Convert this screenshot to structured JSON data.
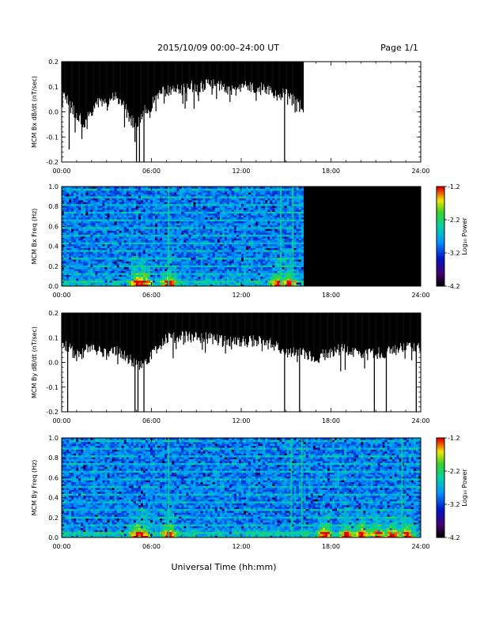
{
  "header": {
    "title": "2015/10/09  00:00–24:00 UT",
    "page": "Page 1/1"
  },
  "footer": {
    "xlabel": "Universal Time (hh:mm)"
  },
  "chart_data": [
    {
      "type": "line",
      "ylabel": "MCM Bx dB/dt (nT/sec)",
      "x_ticks": [
        "00:00",
        "06:00",
        "12:00",
        "18:00",
        "24:00"
      ],
      "y_ticks": [
        "0.2",
        "0.1",
        "0.0",
        "-0.1",
        "-0.2"
      ],
      "xlim": [
        0,
        24
      ],
      "ylim": [
        -0.2,
        0.2
      ],
      "data_end_hour": 16.2,
      "envelope_hours": [
        0,
        0.5,
        1,
        1.5,
        2,
        2.5,
        3,
        3.5,
        4,
        4.5,
        5,
        5.5,
        6,
        6.5,
        7,
        7.5,
        8,
        8.5,
        9,
        9.5,
        10,
        10.5,
        11,
        11.5,
        12,
        12.5,
        13,
        13.5,
        14,
        14.5,
        15,
        15.5,
        16,
        16.2
      ],
      "envelope_min": [
        0.1,
        0.05,
        0.0,
        -0.03,
        0.02,
        0.06,
        0.04,
        0.08,
        0.05,
        0.0,
        -0.05,
        0.02,
        0.04,
        0.09,
        0.1,
        0.11,
        0.1,
        0.12,
        0.11,
        0.12,
        0.13,
        0.12,
        0.11,
        0.1,
        0.11,
        0.12,
        0.1,
        0.11,
        0.09,
        0.08,
        0.1,
        0.07,
        0.04,
        0.0
      ],
      "spikes": [
        {
          "hour": 0.5,
          "min": -0.15
        },
        {
          "hour": 4.9,
          "min": -0.12
        },
        {
          "hour": 5.0,
          "min": -0.2
        },
        {
          "hour": 5.2,
          "min": -0.2
        },
        {
          "hour": 5.5,
          "min": -0.2
        },
        {
          "hour": 14.9,
          "min": -0.2
        },
        {
          "hour": 15.9,
          "min": 0.0
        }
      ]
    },
    {
      "type": "heatmap",
      "ylabel": "MCM Bx Freq (Hz)",
      "x_ticks": [
        "00:00",
        "06:00",
        "12:00",
        "18:00",
        "24:00"
      ],
      "y_ticks": [
        "1.0",
        "0.8",
        "0.6",
        "0.4",
        "0.2",
        "0.0"
      ],
      "xlim": [
        0,
        24
      ],
      "ylim": [
        0,
        1
      ],
      "data_end_hour": 16.2,
      "colorbar": {
        "label": "Log₁₀ Power",
        "ticks": [
          "-1.2",
          "-2.2",
          "-3.2",
          "-4.2"
        ],
        "range": [
          -4.2,
          -1.2
        ]
      },
      "enhancement_hours": [
        5.0,
        5.4,
        7.1,
        14.4,
        15.1
      ],
      "vertical_streak_hours": [
        7.1,
        14.6,
        15.4
      ]
    },
    {
      "type": "line",
      "ylabel": "MCM By dB/dt (nT/sec)",
      "x_ticks": [
        "00:00",
        "06:00",
        "12:00",
        "18:00",
        "24:00"
      ],
      "y_ticks": [
        "0.2",
        "0.1",
        "0.0",
        "-0.1",
        "-0.2"
      ],
      "xlim": [
        0,
        24
      ],
      "ylim": [
        -0.2,
        0.2
      ],
      "data_end_hour": 24,
      "envelope_hours": [
        0,
        1,
        2,
        3,
        4,
        5,
        6,
        7,
        8,
        9,
        10,
        11,
        12,
        13,
        14,
        15,
        16,
        17,
        18,
        19,
        20,
        21,
        22,
        23,
        24
      ],
      "envelope_min": [
        0.1,
        0.04,
        0.08,
        0.05,
        0.06,
        0.0,
        0.04,
        0.11,
        0.12,
        0.12,
        0.11,
        0.1,
        0.1,
        0.1,
        0.09,
        0.05,
        0.06,
        0.03,
        0.06,
        0.07,
        0.04,
        0.05,
        0.06,
        0.08,
        0.08
      ],
      "spikes": [
        {
          "hour": 0.4,
          "min": -0.2
        },
        {
          "hour": 4.9,
          "min": -0.2
        },
        {
          "hour": 5.1,
          "min": -0.2
        },
        {
          "hour": 5.5,
          "min": -0.2
        },
        {
          "hour": 14.9,
          "min": -0.2
        },
        {
          "hour": 15.9,
          "min": -0.2
        },
        {
          "hour": 20.9,
          "min": -0.2
        },
        {
          "hour": 21.7,
          "min": -0.2
        },
        {
          "hour": 23.7,
          "min": -0.2
        }
      ]
    },
    {
      "type": "heatmap",
      "ylabel": "MCM By Freq (Hz)",
      "x_ticks": [
        "00:00",
        "06:00",
        "12:00",
        "18:00",
        "24:00"
      ],
      "y_ticks": [
        "1.0",
        "0.8",
        "0.6",
        "0.4",
        "0.2",
        "0.0"
      ],
      "xlim": [
        0,
        24
      ],
      "ylim": [
        0,
        1
      ],
      "data_end_hour": 24,
      "colorbar": {
        "label": "Log₁₀ Power",
        "ticks": [
          "-1.2",
          "-2.2",
          "-3.2",
          "-4.2"
        ],
        "range": [
          -4.2,
          -1.2
        ]
      },
      "enhancement_hours": [
        5.0,
        5.3,
        7.1,
        17.5,
        19.0,
        20.0,
        21.0,
        22.0,
        23.0
      ],
      "vertical_streak_hours": [
        7.1,
        15.3,
        16.0,
        22.7
      ]
    }
  ]
}
